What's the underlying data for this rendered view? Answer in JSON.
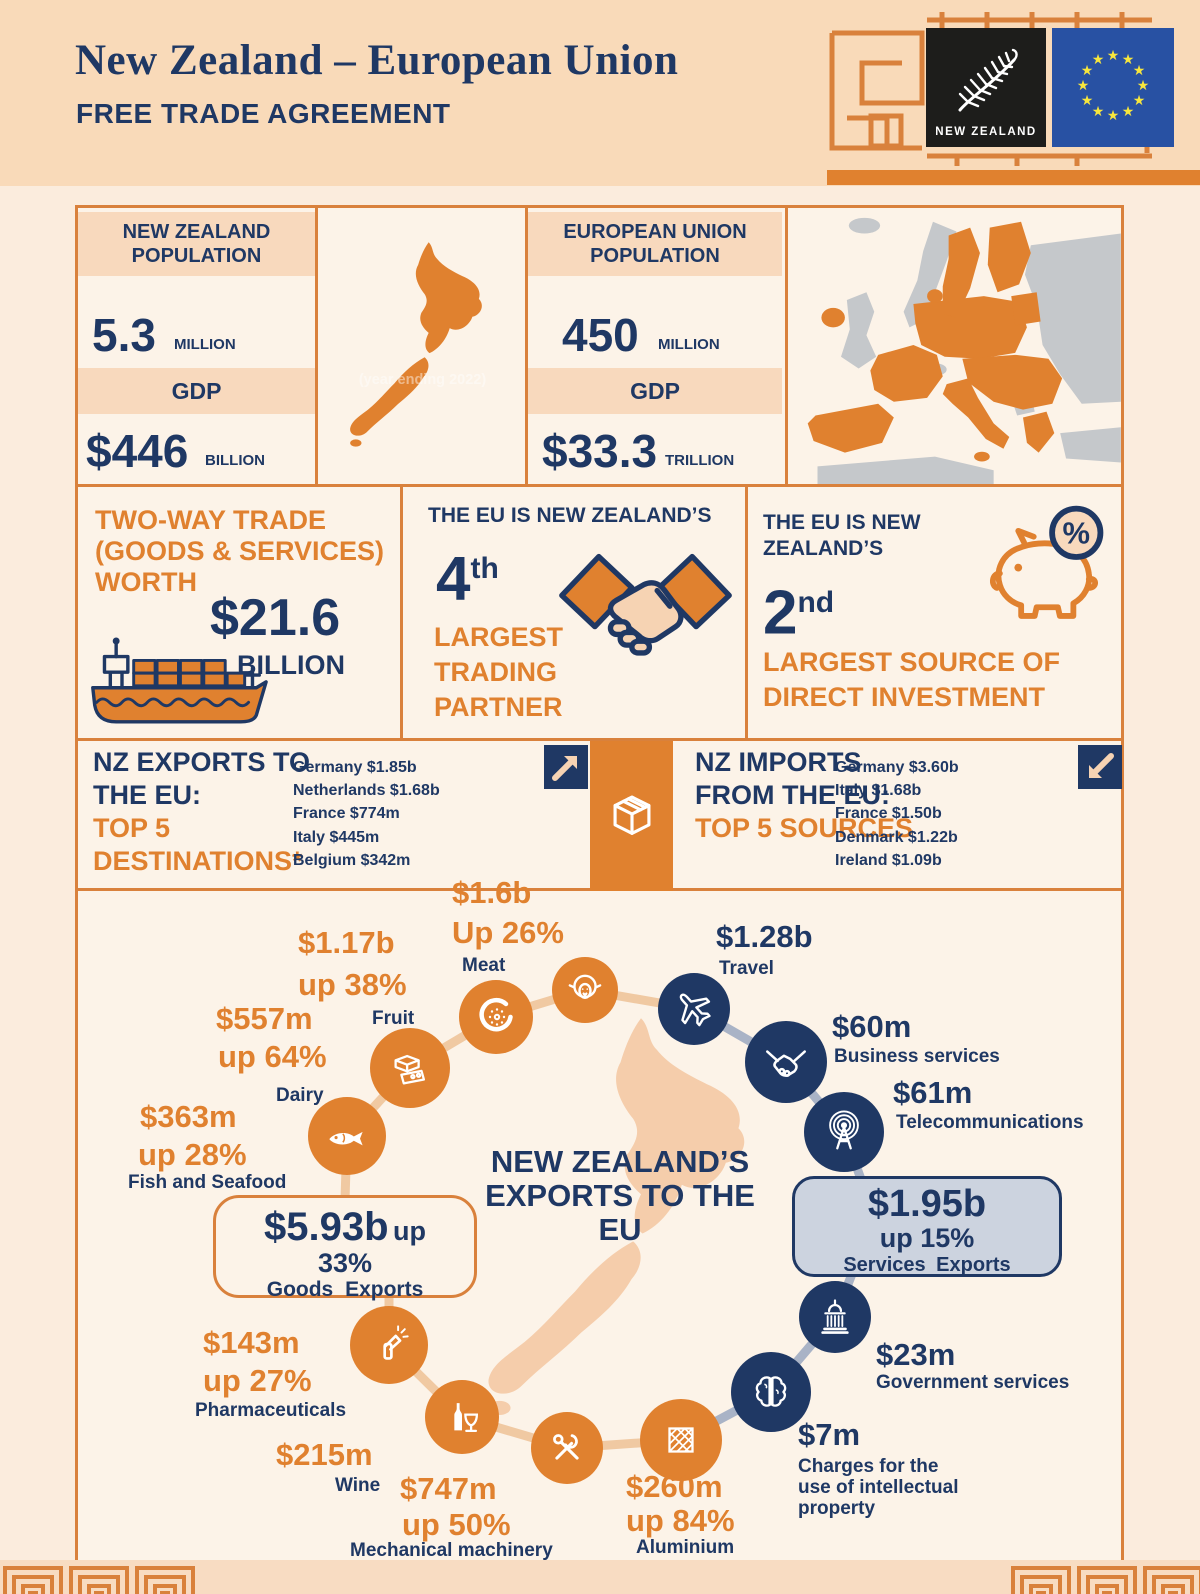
{
  "colors": {
    "navy": "#1f3864",
    "orange": "#e0812f"
  },
  "header": {
    "title": "New Zealand – European Union",
    "subtitle": "FREE TRADE AGREEMENT",
    "nz_flag_label": "NEW ZEALAND"
  },
  "stats": {
    "nz": {
      "population_heading": "NEW ZEALAND POPULATION",
      "population_value": "5.3",
      "population_unit": "MILLION",
      "gdp_heading": "GDP",
      "gdp_value": "$446",
      "gdp_unit": "BILLION",
      "map_note": "(year ending 2022)"
    },
    "eu": {
      "population_heading": "EUROPEAN UNION POPULATION",
      "population_value": "450",
      "population_unit": "MILLION",
      "gdp_heading": "GDP",
      "gdp_value": "$33.3",
      "gdp_unit": "TRILLION"
    }
  },
  "highlights": {
    "two_way_trade": {
      "label": "TWO-WAY TRADE (GOODS & SERVICES) WORTH",
      "value": "$21.6",
      "unit": "BILLION"
    },
    "trading_partner": {
      "intro": "THE EU IS NEW ZEALAND’S",
      "rank": "4",
      "rank_suffix": "th",
      "label": "LARGEST TRADING PARTNER"
    },
    "investment": {
      "intro": "THE EU IS NEW ZEALAND’S",
      "rank": "2",
      "rank_suffix": "nd",
      "label": "LARGEST SOURCE OF DIRECT INVESTMENT"
    }
  },
  "flows": {
    "exports": {
      "heading": "NZ EXPORTS TO THE EU:",
      "subheading": "TOP 5 DESTINATIONS*",
      "items": [
        "Germany $1.85b",
        "Netherlands $1.68b",
        "France $774m",
        "Italy $445m",
        "Belgium $342m"
      ]
    },
    "imports": {
      "heading": "NZ IMPORTS FROM THE EU:",
      "subheading": "TOP 5 SOURCES",
      "items": [
        "Germany $3.60b",
        "Italy $1.68b",
        "France $1.50b",
        "Denmark $1.22b",
        "Ireland $1.09b"
      ]
    }
  },
  "wheel": {
    "center_title": "NEW ZEALAND’S EXPORTS TO THE EU",
    "goods_total": {
      "value": "$5.93b",
      "change": "up 33%",
      "label": "Goods Exports"
    },
    "services_total": {
      "value": "$1.95b",
      "change": "up 15%",
      "label": "Services Exports"
    },
    "goods": [
      {
        "label": "Meat",
        "value": "$1.6b",
        "change": "Up 26%"
      },
      {
        "label": "Fruit",
        "value": "$1.17b",
        "change": "up 38%"
      },
      {
        "label": "Dairy",
        "value": "$557m",
        "change": "up 64%"
      },
      {
        "label": "Fish and Seafood",
        "value": "$363m",
        "change": "up 28%"
      },
      {
        "label": "Pharmaceuticals",
        "value": "$143m",
        "change": "up 27%"
      },
      {
        "label": "Wine",
        "value": "$215m",
        "change": ""
      },
      {
        "label": "Mechanical machinery",
        "value": "$747m",
        "change": "up 50%"
      },
      {
        "label": "Aluminium",
        "value": "$260m",
        "change": "up 84%"
      }
    ],
    "services": [
      {
        "label": "Travel",
        "value": "$1.28b"
      },
      {
        "label": "Business services",
        "value": "$60m"
      },
      {
        "label": "Telecommunications",
        "value": "$61m"
      },
      {
        "label": "Government services",
        "value": "$23m"
      },
      {
        "label": "Charges for the use of intellectual property",
        "value": "$7m"
      }
    ]
  },
  "chart_data": {
    "type": "table",
    "title": "New Zealand's exports to the EU",
    "series": [
      {
        "name": "Goods exports",
        "categories": [
          "Meat",
          "Fruit",
          "Dairy",
          "Fish and Seafood",
          "Pharmaceuticals",
          "Wine",
          "Mechanical machinery",
          "Aluminium"
        ],
        "values_nzd": [
          1600000000,
          1170000000,
          557000000,
          363000000,
          143000000,
          215000000,
          747000000,
          260000000
        ],
        "change_pct": [
          26,
          38,
          64,
          28,
          27,
          null,
          50,
          84
        ],
        "total_nzd": 5930000000,
        "total_change_pct": 33
      },
      {
        "name": "Services exports",
        "categories": [
          "Travel",
          "Business services",
          "Telecommunications",
          "Government services",
          "Charges for the use of intellectual property"
        ],
        "values_nzd": [
          1280000000,
          60000000,
          61000000,
          23000000,
          7000000
        ],
        "change_pct": [
          null,
          null,
          null,
          null,
          null
        ],
        "total_nzd": 1950000000,
        "total_change_pct": 15
      }
    ]
  }
}
